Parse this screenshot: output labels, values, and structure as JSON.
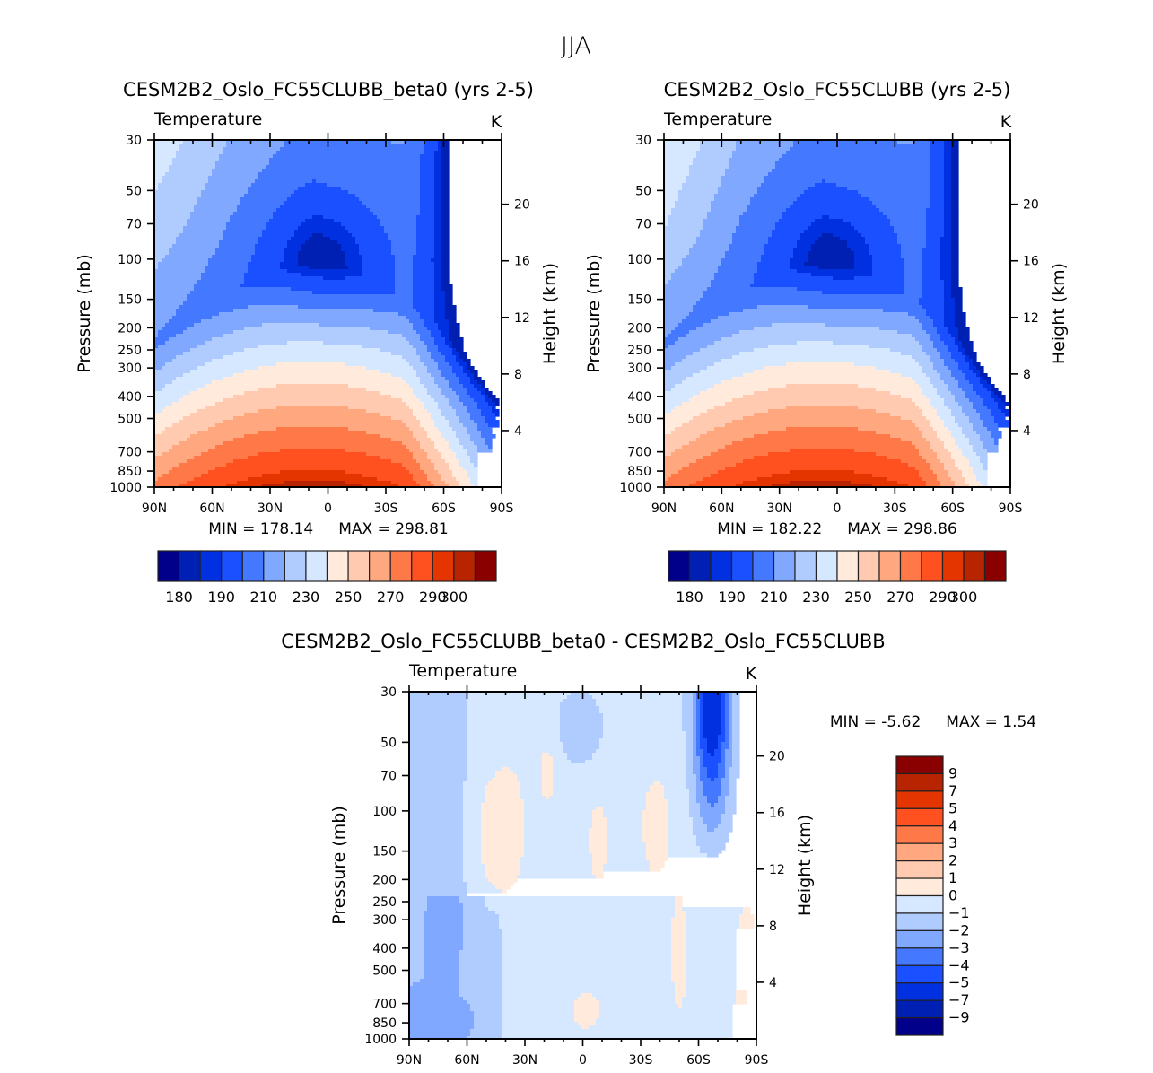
{
  "figure": {
    "suptitle": "JJA",
    "lat_ticks": [
      "90N",
      "60N",
      "30N",
      "0",
      "30S",
      "60S",
      "90S"
    ],
    "pressure_ticks": [
      30,
      50,
      70,
      100,
      150,
      200,
      250,
      300,
      400,
      500,
      700,
      850,
      1000
    ],
    "height_ticks": [
      4,
      8,
      12,
      16,
      20
    ],
    "ylabel_left": "Pressure (mb)",
    "ylabel_right": "Height (km)",
    "variable": "Temperature",
    "units": "K"
  },
  "chart_data": [
    {
      "type": "heatmap",
      "subtype": "filled-contour",
      "title": "CESM2B2_Oslo_FC55CLUBB_beta0 (yrs 2-5)",
      "left_string": "Temperature",
      "right_string": "K",
      "xlabel": "",
      "ylabel": "Pressure (mb)",
      "ylabel_right": "Height (km)",
      "x_ticks": [
        "90N",
        "60N",
        "30N",
        "0",
        "30S",
        "60S",
        "90S"
      ],
      "xlim": [
        -90,
        90
      ],
      "ylim": [
        1000,
        30
      ],
      "y_scale": "log",
      "min_label": "MIN = 178.14",
      "max_label": "MAX = 298.81",
      "min": 178.14,
      "max": 298.81,
      "colorbar": {
        "orientation": "horizontal",
        "levels": [
          180,
          185,
          190,
          200,
          210,
          220,
          230,
          240,
          250,
          260,
          270,
          280,
          290,
          295,
          300
        ],
        "tick_labels": [
          "180",
          "190",
          "210",
          "230",
          "250",
          "270",
          "290",
          "300"
        ],
        "colors": [
          "#00008a",
          "#0020b4",
          "#0030e0",
          "#1a50ff",
          "#4478ff",
          "#80a8ff",
          "#b0ccff",
          "#d6e8ff",
          "#ffeadb",
          "#ffcab0",
          "#ffa880",
          "#ff7848",
          "#ff5020",
          "#e43400",
          "#b82400",
          "#8a0000"
        ]
      },
      "description": "Zonal-mean temperature: warm tropical lower troposphere (~295 K near 15N-0 surface), cold tropical tropopause minimum (~200 K near 100 mb, 15N-15S), very cold southern polar stratosphere (<185 K near 30-50 mb, 75S-90S)."
    },
    {
      "type": "heatmap",
      "subtype": "filled-contour",
      "title": "CESM2B2_Oslo_FC55CLUBB (yrs 2-5)",
      "left_string": "Temperature",
      "right_string": "K",
      "xlabel": "",
      "ylabel": "Pressure (mb)",
      "ylabel_right": "Height (km)",
      "x_ticks": [
        "90N",
        "60N",
        "30N",
        "0",
        "30S",
        "60S",
        "90S"
      ],
      "xlim": [
        -90,
        90
      ],
      "ylim": [
        1000,
        30
      ],
      "y_scale": "log",
      "min_label": "MIN = 182.22",
      "max_label": "MAX = 298.86",
      "min": 182.22,
      "max": 298.86,
      "colorbar": {
        "orientation": "horizontal",
        "levels": [
          180,
          185,
          190,
          200,
          210,
          220,
          230,
          240,
          250,
          260,
          270,
          280,
          290,
          295,
          300
        ],
        "tick_labels": [
          "180",
          "190",
          "210",
          "230",
          "250",
          "270",
          "290",
          "300"
        ],
        "colors": [
          "#00008a",
          "#0020b4",
          "#0030e0",
          "#1a50ff",
          "#4478ff",
          "#80a8ff",
          "#b0ccff",
          "#d6e8ff",
          "#ffeadb",
          "#ffcab0",
          "#ffa880",
          "#ff7848",
          "#ff5020",
          "#e43400",
          "#b82400",
          "#8a0000"
        ]
      },
      "description": "Nearly identical to the beta0 run; southern polar stratosphere slightly warmer (min 182.22 K)."
    },
    {
      "type": "heatmap",
      "subtype": "filled-contour",
      "title": "CESM2B2_Oslo_FC55CLUBB_beta0 - CESM2B2_Oslo_FC55CLUBB",
      "left_string": "Temperature",
      "right_string": "K",
      "xlabel": "",
      "ylabel": "Pressure (mb)",
      "ylabel_right": "Height (km)",
      "x_ticks": [
        "90N",
        "60N",
        "30N",
        "0",
        "30S",
        "60S",
        "90S"
      ],
      "xlim": [
        -90,
        90
      ],
      "ylim": [
        1000,
        30
      ],
      "y_scale": "log",
      "min_label": "MIN =   -5.62",
      "max_label": "MAX =    1.54",
      "min": -5.62,
      "max": 1.54,
      "colorbar": {
        "orientation": "vertical",
        "levels": [
          -9,
          -7,
          -5,
          -4,
          -3,
          -2,
          -1,
          0,
          1,
          2,
          3,
          4,
          5,
          7,
          9
        ],
        "tick_labels": [
          "9",
          "7",
          "5",
          "4",
          "3",
          "2",
          "1",
          "0",
          "-1",
          "-2",
          "-3",
          "-4",
          "-5",
          "-7",
          "-9"
        ],
        "colors": [
          "#00008a",
          "#0020b4",
          "#0030e0",
          "#1a50ff",
          "#4478ff",
          "#80a8ff",
          "#b0ccff",
          "#d6e8ff",
          "#ffeadb",
          "#ffcab0",
          "#ffa880",
          "#ff7848",
          "#ff5020",
          "#e43400",
          "#b82400",
          "#8a0000"
        ]
      },
      "description": "Differences mostly between -1 and 0 K; -1 to -2 K over the northern high latitudes; strong cooling (to about -5.6 K) in the southern polar stratosphere near 60S-75S above 100 mb; small patches of 0 to +1 K scattered."
    }
  ]
}
